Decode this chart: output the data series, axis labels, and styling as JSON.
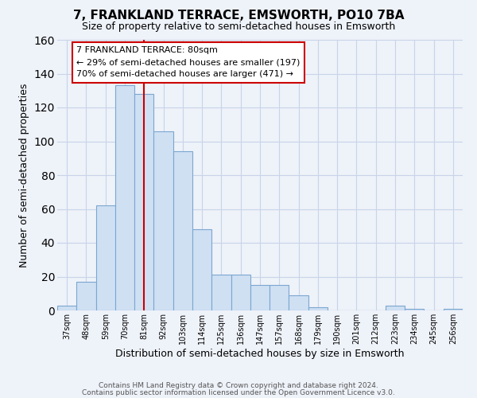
{
  "title": "7, FRANKLAND TERRACE, EMSWORTH, PO10 7BA",
  "subtitle": "Size of property relative to semi-detached houses in Emsworth",
  "xlabel": "Distribution of semi-detached houses by size in Emsworth",
  "ylabel": "Number of semi-detached properties",
  "bin_labels": [
    "37sqm",
    "48sqm",
    "59sqm",
    "70sqm",
    "81sqm",
    "92sqm",
    "103sqm",
    "114sqm",
    "125sqm",
    "136sqm",
    "147sqm",
    "157sqm",
    "168sqm",
    "179sqm",
    "190sqm",
    "201sqm",
    "212sqm",
    "223sqm",
    "234sqm",
    "245sqm",
    "256sqm"
  ],
  "bar_heights": [
    3,
    17,
    62,
    133,
    128,
    106,
    94,
    48,
    21,
    21,
    15,
    15,
    9,
    2,
    0,
    0,
    0,
    3,
    1,
    0,
    1
  ],
  "bar_color": "#cfe0f3",
  "bar_edge_color": "#7ba7d0",
  "vline_x_index": 4,
  "vline_color": "#cc0000",
  "annotation_title": "7 FRANKLAND TERRACE: 80sqm",
  "annotation_line1": "← 29% of semi-detached houses are smaller (197)",
  "annotation_line2": "70% of semi-detached houses are larger (471) →",
  "annotation_box_color": "#ffffff",
  "annotation_box_edge": "#cc0000",
  "ylim": [
    0,
    160
  ],
  "yticks": [
    0,
    20,
    40,
    60,
    80,
    100,
    120,
    140,
    160
  ],
  "footer_line1": "Contains HM Land Registry data © Crown copyright and database right 2024.",
  "footer_line2": "Contains public sector information licensed under the Open Government Licence v3.0.",
  "background_color": "#eef2f9",
  "grid_color": "#ffffff",
  "grid_line_color": "#c8d4e8"
}
